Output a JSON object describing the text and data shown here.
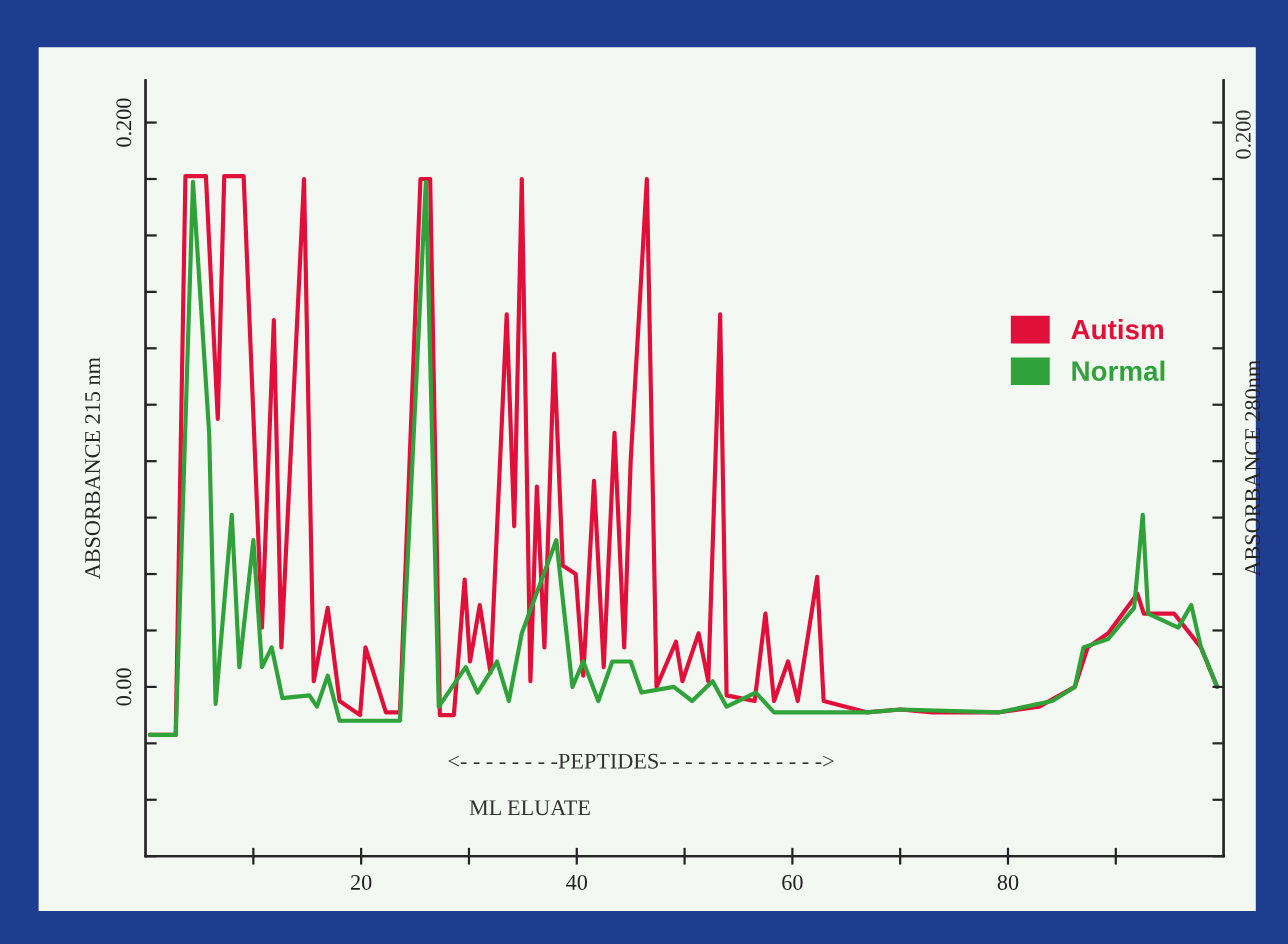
{
  "chart_data": {
    "type": "line",
    "ylabel": "ABSORBANCE 215 nm",
    "y2label": "ABSORBANCE 280nm",
    "annotations": [
      "<- - - - - - - -PEPTIDES- - - - - - - - - - - - ->",
      "ML ELUATE",
      "0.200"
    ],
    "xlim": [
      0,
      100
    ],
    "ylim": [
      -0.06,
      0.215
    ],
    "xticks": [
      {
        "value": 10,
        "label": null
      },
      20,
      {
        "value": 30,
        "label": null
      },
      40,
      {
        "value": 50,
        "label": null
      },
      60,
      {
        "value": 70,
        "label": null
      },
      80,
      {
        "value": 90,
        "label": null
      }
    ],
    "yticks": [
      {
        "value": -0.06,
        "label": null
      },
      {
        "value": -0.04,
        "label": null
      },
      {
        "value": -0.02,
        "label": null
      },
      {
        "value": 0,
        "label": "0.00"
      },
      {
        "value": 0.02,
        "label": null
      },
      {
        "value": 0.04,
        "label": null
      },
      {
        "value": 0.06,
        "label": null
      },
      {
        "value": 0.08,
        "label": null
      },
      {
        "value": 0.1,
        "label": null
      },
      {
        "value": 0.12,
        "label": null
      },
      {
        "value": 0.14,
        "label": null
      },
      {
        "value": 0.16,
        "label": null
      },
      {
        "value": 0.18,
        "label": null
      },
      {
        "value": 0.2,
        "label": "0.200"
      }
    ],
    "grid": false,
    "legend": "right",
    "marker": "none",
    "line_style": "solid",
    "series": [
      {
        "name": "Autism",
        "color": "#e0103a",
        "x": [
          0.4,
          2.8,
          3.7,
          5.6,
          6.7,
          7.3,
          9.1,
          10.8,
          11.9,
          12.6,
          14.7,
          15.6,
          16.9,
          18,
          19.9,
          20.4,
          22.3,
          23.6,
          25.5,
          26.4,
          27.3,
          28.6,
          29.6,
          30.1,
          31,
          32,
          33.5,
          34.2,
          34.9,
          35.7,
          36.3,
          37,
          37.9,
          38.7,
          39.9,
          40.6,
          41.6,
          42.5,
          43.5,
          44.4,
          45,
          46.5,
          47.4,
          49.2,
          49.8,
          51.3,
          52.2,
          53.3,
          53.9,
          56.5,
          57.5,
          58.3,
          59.6,
          60.5,
          62.3,
          62.9,
          66.9,
          70,
          73,
          79.2,
          82.9,
          86.2,
          87.4,
          89.3,
          92,
          92.6,
          95.4,
          97.9,
          99.4
        ],
        "values": [
          -0.017,
          -0.017,
          0.181,
          0.181,
          0.095,
          0.181,
          0.181,
          0.021,
          0.13,
          0.014,
          0.18,
          0.002,
          0.028,
          -0.005,
          -0.01,
          0.014,
          -0.009,
          -0.009,
          0.18,
          0.18,
          -0.01,
          -0.01,
          0.038,
          0.009,
          0.029,
          0.005,
          0.132,
          0.057,
          0.18,
          0.002,
          0.071,
          0.014,
          0.118,
          0.043,
          0.04,
          0.004,
          0.073,
          0.007,
          0.09,
          0.014,
          0.08,
          0.18,
          0.0,
          0.016,
          0.002,
          0.019,
          0.002,
          0.132,
          -0.003,
          -0.005,
          0.026,
          -0.005,
          0.009,
          -0.005,
          0.039,
          -0.005,
          -0.009,
          -0.008,
          -0.009,
          -0.009,
          -0.007,
          0.0,
          0.014,
          0.019,
          0.033,
          0.026,
          0.026,
          0.014,
          0.0
        ]
      },
      {
        "name": "Normal",
        "color": "#2fa23a",
        "x": [
          0.4,
          2.8,
          4.4,
          5.9,
          6.5,
          8,
          8.7,
          10,
          10.8,
          11.7,
          12.7,
          15.2,
          15.9,
          16.9,
          18,
          23.6,
          26,
          27.2,
          29.7,
          30.8,
          32.6,
          33.7,
          34.9,
          38.1,
          39.6,
          40.6,
          42,
          43.3,
          45,
          46,
          49,
          50.7,
          52.6,
          53.9,
          56.6,
          58.3,
          66.9,
          70,
          79.2,
          84.1,
          86.2,
          87,
          89.3,
          91.7,
          92.5,
          93,
          95.8,
          97,
          97.9,
          99.4
        ],
        "values": [
          -0.017,
          -0.017,
          0.179,
          0.09,
          -0.006,
          0.061,
          0.007,
          0.052,
          0.007,
          0.014,
          -0.004,
          -0.003,
          -0.007,
          0.004,
          -0.012,
          -0.012,
          0.179,
          -0.007,
          0.007,
          -0.002,
          0.009,
          -0.005,
          0.019,
          0.052,
          0.0,
          0.009,
          -0.005,
          0.009,
          0.009,
          -0.002,
          0.0,
          -0.005,
          0.002,
          -0.007,
          -0.002,
          -0.009,
          -0.009,
          -0.008,
          -0.009,
          -0.005,
          0.0,
          0.014,
          0.017,
          0.028,
          0.061,
          0.026,
          0.021,
          0.029,
          0.014,
          0.0
        ]
      }
    ]
  }
}
